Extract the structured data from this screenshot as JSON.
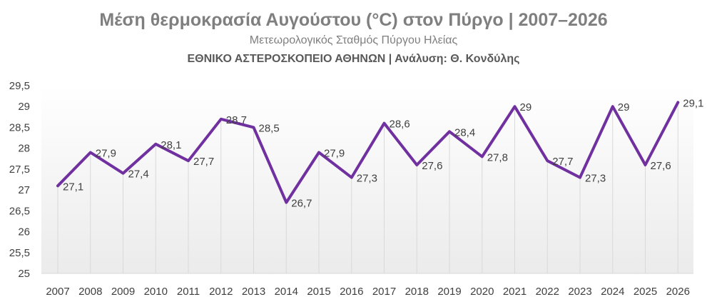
{
  "chart_data": {
    "type": "line",
    "title": "Μέση θερμοκρασία Αυγούστου (°C) στον Πύργο | 2007–2026",
    "subtitle": "Μετεωρολογικός Σταθμός Πύργου Ηλείας",
    "credit": "ΕΘΝΙΚΟ ΑΣΤΕΡΟΣΚΟΠΕΙΟ ΑΘΗΝΩΝ | Ανάλυση: Θ. Κονδύλης",
    "categories": [
      "2007",
      "2008",
      "2009",
      "2010",
      "2011",
      "2012",
      "2013",
      "2014",
      "2015",
      "2016",
      "2017",
      "2018",
      "2019",
      "2020",
      "2021",
      "2022",
      "2023",
      "2024",
      "2025",
      "2026"
    ],
    "values": [
      27.1,
      27.9,
      27.4,
      28.1,
      27.7,
      28.7,
      28.5,
      26.7,
      27.9,
      27.3,
      28.6,
      27.6,
      28.4,
      27.8,
      29,
      27.7,
      27.3,
      29,
      27.6,
      29.1
    ],
    "data_labels": [
      "27,1",
      "27,9",
      "27,4",
      "28,1",
      "27,7",
      "28,7",
      "28,5",
      "26,7",
      "27,9",
      "27,3",
      "28,6",
      "27,6",
      "28,4",
      "27,8",
      "29",
      "27,7",
      "27,3",
      "29",
      "27,6",
      "29,1"
    ],
    "ylim": [
      25,
      29.5
    ],
    "yticks": [
      25,
      25.5,
      26,
      26.5,
      27,
      27.5,
      28,
      28.5,
      29,
      29.5
    ],
    "ytick_labels": [
      "25",
      "25,5",
      "26",
      "26,5",
      "27",
      "27,5",
      "28",
      "28,5",
      "29",
      "29,5"
    ],
    "xlabel": "",
    "ylabel": "",
    "grid": "vertical drop lines",
    "legend": "none",
    "line_color": "#7030a0",
    "dropline_color": "#d9d9d9",
    "text_color": "#404040"
  }
}
